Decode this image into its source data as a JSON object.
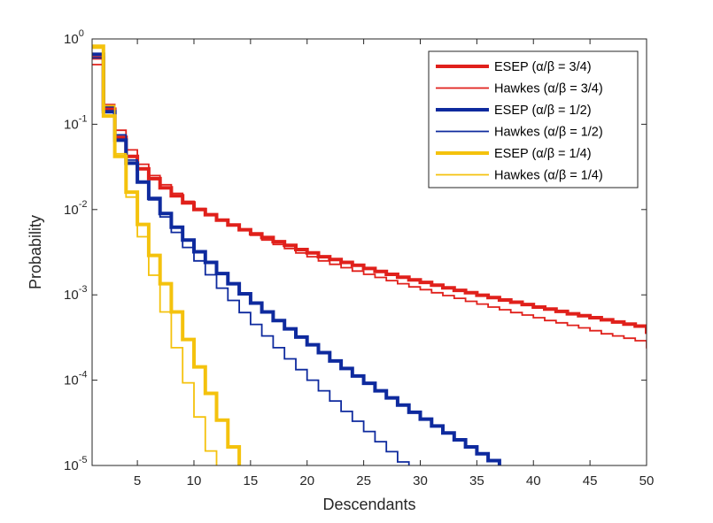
{
  "chart_data": {
    "type": "line",
    "title": "",
    "xlabel": "Descendants",
    "ylabel": "Probability",
    "xscale": "linear",
    "yscale": "log",
    "xlim": [
      1,
      50
    ],
    "ylim": [
      1e-05,
      1
    ],
    "xticks": [
      5,
      10,
      15,
      20,
      25,
      30,
      35,
      40,
      45,
      50
    ],
    "xtick_labels": [
      "5",
      "10",
      "15",
      "20",
      "25",
      "30",
      "35",
      "40",
      "45",
      "50"
    ],
    "yticks": [
      1e-05,
      0.0001,
      0.001,
      0.01,
      0.1,
      1
    ],
    "ytick_labels": [
      {
        "base": "10",
        "exp": "-5"
      },
      {
        "base": "10",
        "exp": "-4"
      },
      {
        "base": "10",
        "exp": "-3"
      },
      {
        "base": "10",
        "exp": "-2"
      },
      {
        "base": "10",
        "exp": "-1"
      },
      {
        "base": "10",
        "exp": "0"
      }
    ],
    "legend_position": "top-right",
    "series": [
      {
        "name": "ESEP (α/β = 3/4)",
        "color": "#e0201b",
        "width": 4,
        "model": "ESEP",
        "values": [
          0.6,
          0.15,
          0.07,
          0.042,
          0.03,
          0.023,
          0.018,
          0.0145,
          0.012,
          0.01,
          0.0087,
          0.0075,
          0.0066,
          0.0058,
          0.0052,
          0.0047,
          0.0042,
          0.0038,
          0.0034,
          0.0031,
          0.0028,
          0.0026,
          0.0024,
          0.00222,
          0.00204,
          0.00188,
          0.00174,
          0.00161,
          0.0015,
          0.0014,
          0.0013,
          0.00121,
          0.00113,
          0.00106,
          0.00099,
          0.00093,
          0.00087,
          0.00082,
          0.00077,
          0.00072,
          0.00068,
          0.00064,
          0.0006,
          0.00057,
          0.00054,
          0.00051,
          0.00048,
          0.000455,
          0.00043,
          0.000365
        ]
      },
      {
        "name": "Hawkes (α/β = 3/4)",
        "color": "#e0201b",
        "width": 1.8,
        "model": "Hawkes",
        "values": [
          0.5,
          0.17,
          0.085,
          0.05,
          0.034,
          0.025,
          0.0195,
          0.0155,
          0.0125,
          0.0103,
          0.0088,
          0.0075,
          0.0065,
          0.0057,
          0.005,
          0.0044,
          0.0039,
          0.0035,
          0.0031,
          0.0028,
          0.0025,
          0.00228,
          0.00208,
          0.0019,
          0.00174,
          0.0016,
          0.00147,
          0.00135,
          0.00124,
          0.00115,
          0.00106,
          0.00098,
          0.00091,
          0.00084,
          0.00078,
          0.00072,
          0.00067,
          0.00062,
          0.00058,
          0.00054,
          0.0005,
          0.00047,
          0.00044,
          0.00041,
          0.00038,
          0.00035,
          0.00033,
          0.00031,
          0.00029,
          0.00024
        ]
      },
      {
        "name": "ESEP (α/β = 1/2)",
        "color": "#0e2a9e",
        "width": 4,
        "model": "ESEP",
        "values": [
          0.66,
          0.14,
          0.065,
          0.035,
          0.021,
          0.0135,
          0.009,
          0.0062,
          0.0044,
          0.0032,
          0.0024,
          0.00178,
          0.00135,
          0.00103,
          0.0008,
          0.00063,
          0.0005,
          0.0004,
          0.00032,
          0.00026,
          0.00021,
          0.000168,
          0.000137,
          0.000112,
          9.2e-05,
          7.5e-05,
          6.2e-05,
          5.1e-05,
          4.2e-05,
          3.5e-05,
          2.9e-05,
          2.4e-05,
          2e-05,
          1.65e-05,
          1.37e-05,
          1.14e-05,
          9.5e-06,
          7.5e-06
        ]
      },
      {
        "name": "Hawkes (α/β = 1/2)",
        "color": "#0e2a9e",
        "width": 1.8,
        "model": "Hawkes",
        "values": [
          0.6,
          0.16,
          0.075,
          0.038,
          0.021,
          0.013,
          0.0082,
          0.0054,
          0.0036,
          0.0025,
          0.00172,
          0.0012,
          0.00086,
          0.00062,
          0.00045,
          0.00033,
          0.00024,
          0.000178,
          0.000133,
          0.0001,
          7.5e-05,
          5.7e-05,
          4.3e-05,
          3.3e-05,
          2.5e-05,
          1.9e-05,
          1.45e-05,
          1.1e-05,
          8.5e-06,
          6.5e-06
        ]
      },
      {
        "name": "ESEP (α/β = 1/4)",
        "color": "#f4c20d",
        "width": 4,
        "model": "ESEP",
        "values": [
          0.82,
          0.125,
          0.042,
          0.016,
          0.0067,
          0.0029,
          0.00135,
          0.00063,
          0.0003,
          0.000143,
          7e-05,
          3.4e-05,
          1.65e-05,
          8e-06
        ]
      },
      {
        "name": "Hawkes (α/β = 1/4)",
        "color": "#f4c20d",
        "width": 1.8,
        "model": "Hawkes",
        "values": [
          0.78,
          0.165,
          0.045,
          0.014,
          0.0048,
          0.0017,
          0.00063,
          0.00024,
          9.3e-05,
          3.7e-05,
          1.48e-05,
          6e-06
        ]
      }
    ]
  }
}
